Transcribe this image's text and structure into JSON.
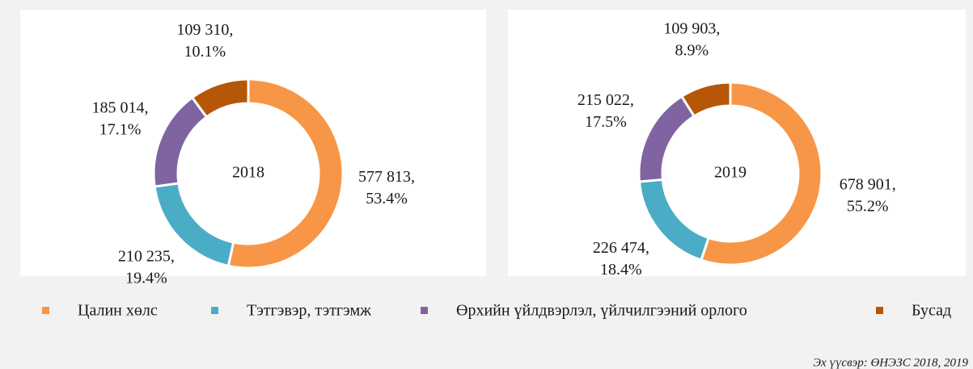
{
  "legend": {
    "categories": [
      "Цалин хөлс",
      "Тэтгэвэр, тэтгэмж",
      "Өрхийн үйлдвэрлэл, үйлчилгээний орлого",
      "Бусад"
    ],
    "colors": [
      "#f79646",
      "#4bacc6",
      "#8064a2",
      "#b65708"
    ]
  },
  "chart_data": [
    {
      "type": "donut",
      "title": "2018",
      "values": [
        577813,
        210235,
        185014,
        109310
      ],
      "value_labels": [
        "577 813,",
        "210 235,",
        "185 014,",
        "109 310,"
      ],
      "percents": [
        53.4,
        19.4,
        17.1,
        10.1
      ],
      "percent_labels": [
        "53.4%",
        "19.4%",
        "17.1%",
        "10.1%"
      ]
    },
    {
      "type": "donut",
      "title": "2019",
      "values": [
        678901,
        226474,
        215022,
        109903
      ],
      "value_labels": [
        "678 901,",
        "226 474,",
        "215 022,",
        "109 903,"
      ],
      "percents": [
        55.2,
        18.4,
        17.5,
        8.9
      ],
      "percent_labels": [
        "55.2%",
        "18.4%",
        "17.5%",
        "8.9%"
      ]
    }
  ],
  "source": "Эх үүсвэр: ӨНЭЗС 2018, 2019"
}
